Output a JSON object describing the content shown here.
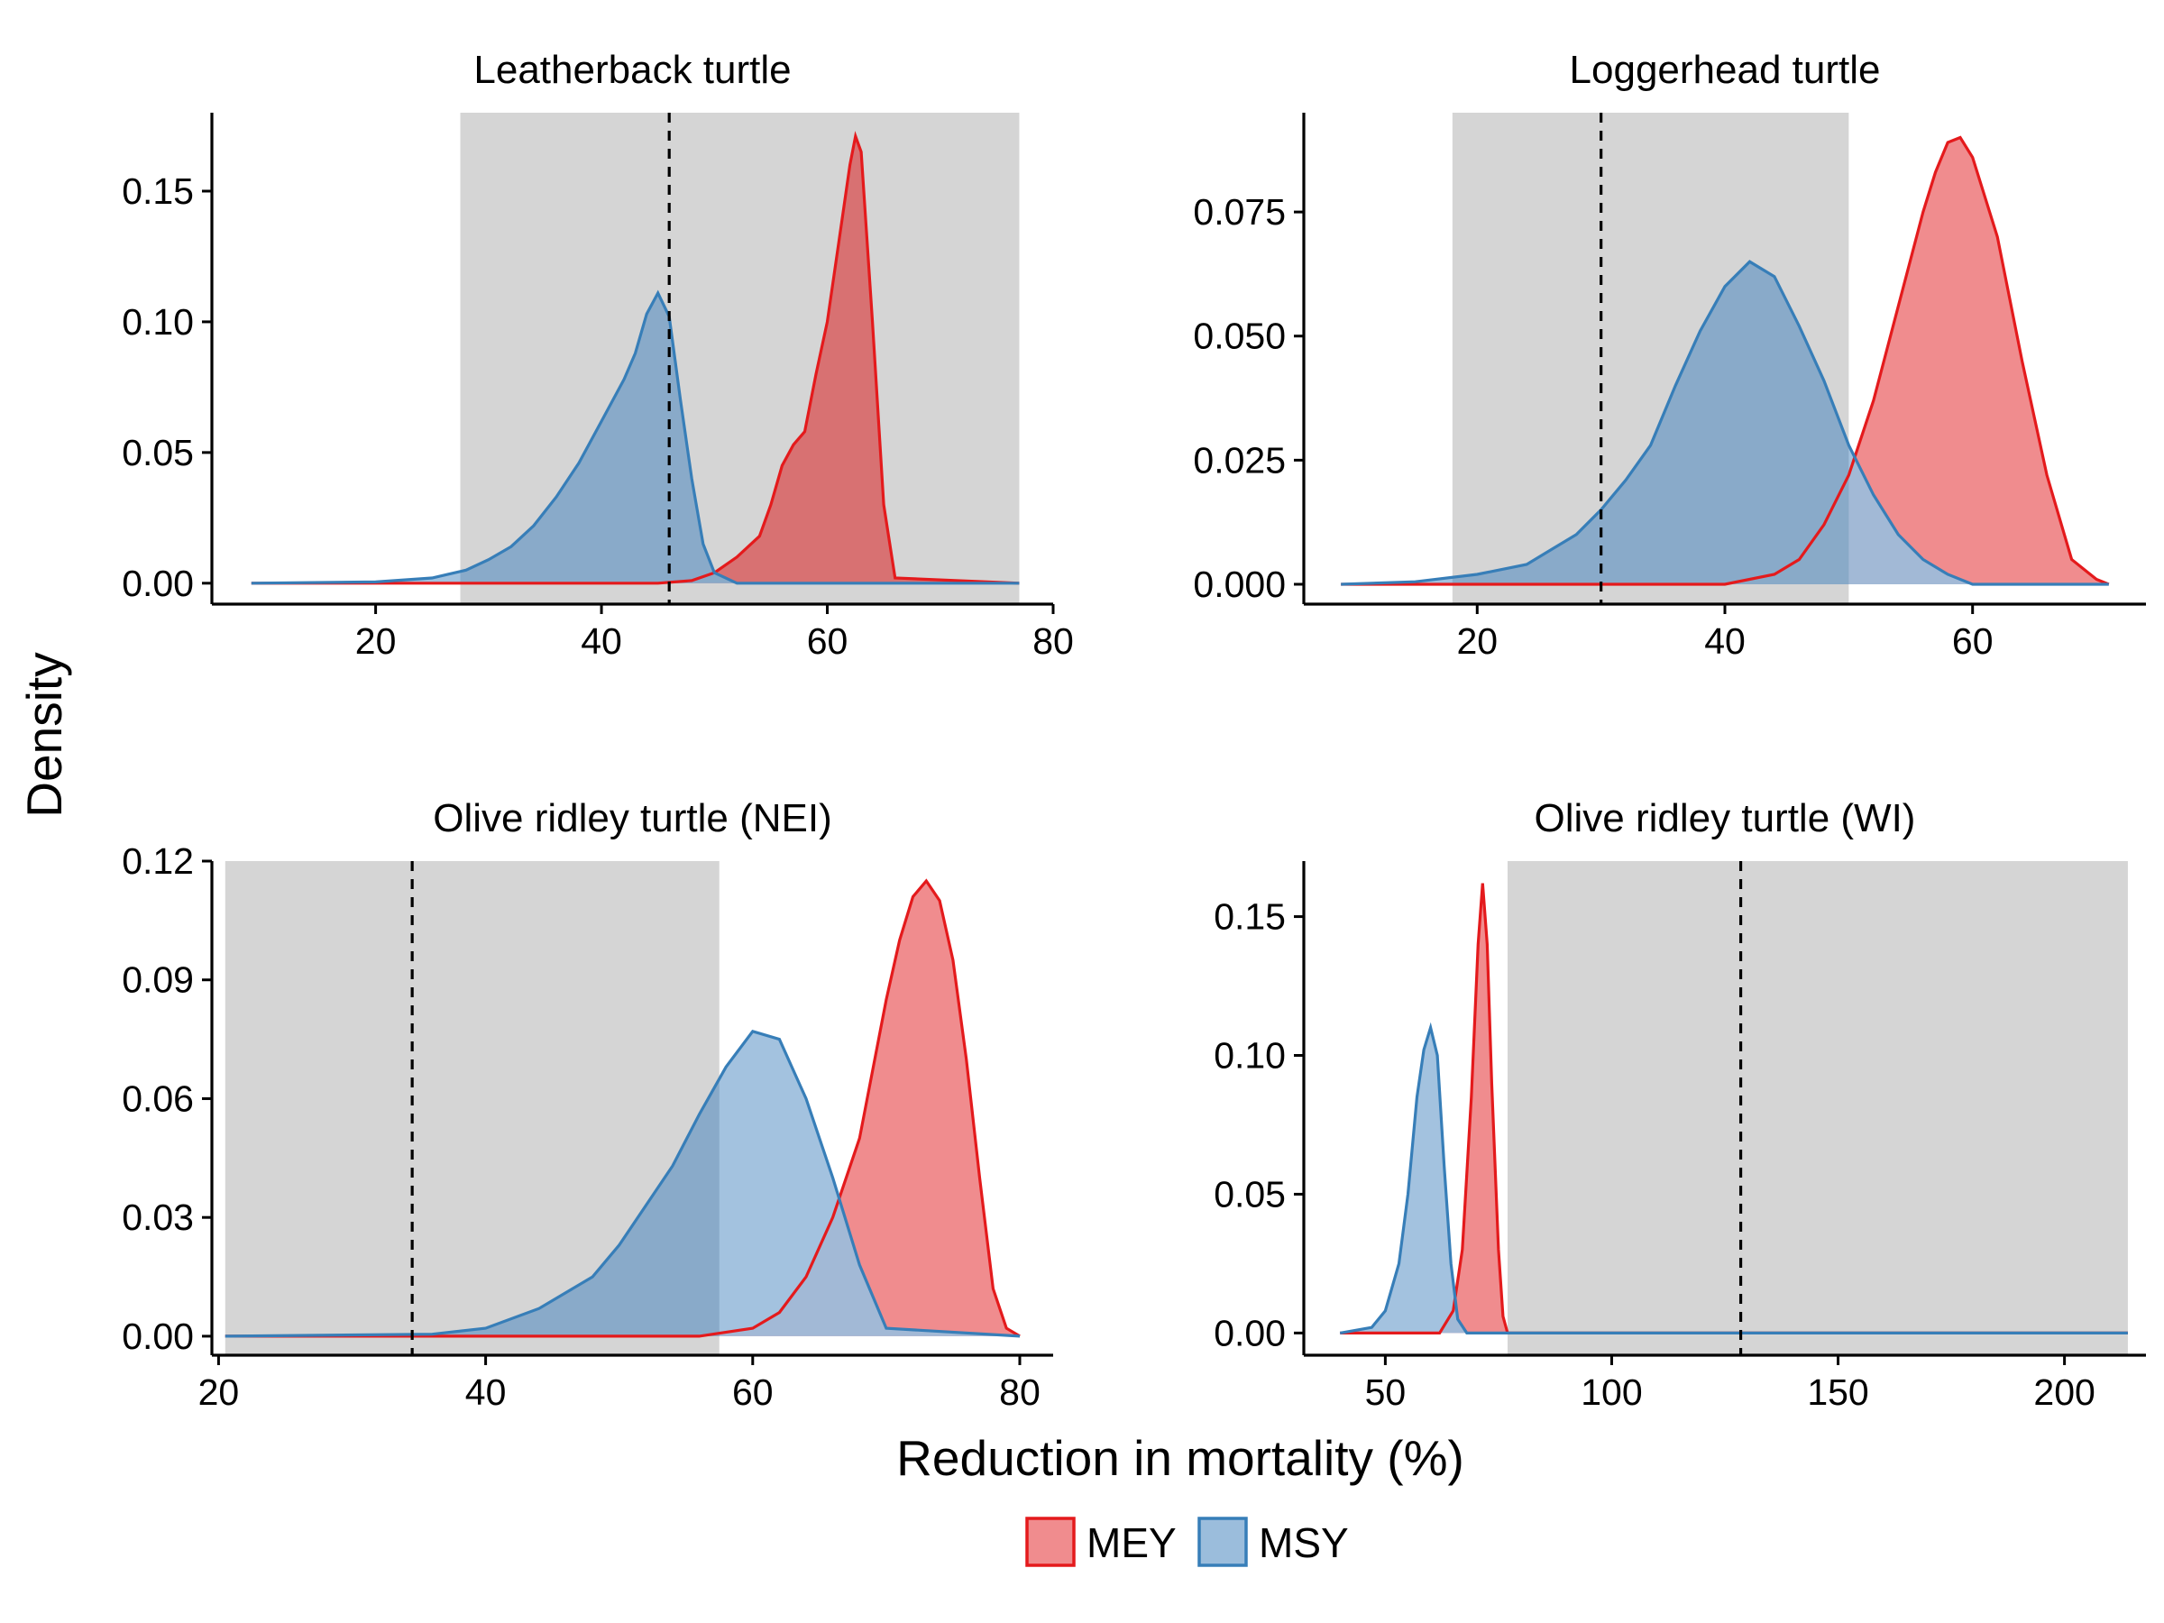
{
  "figure": {
    "ylabel": "Density",
    "xlabel": "Reduction in mortality (%)"
  },
  "legend": {
    "position": "bottom",
    "items": [
      {
        "label": "MEY",
        "fill": "#f08c8e",
        "stroke": "#e41a1c"
      },
      {
        "label": "MSY",
        "fill": "#9bbddc",
        "stroke": "#377eb8"
      }
    ]
  },
  "colors": {
    "MEY_fill": "#f08c8e",
    "MEY_line": "#e41a1c",
    "MSY_fill": "#9bbddc",
    "MSY_line": "#377eb8",
    "band": "#d5d5d5",
    "band_overlap_blue": "#87a8c7",
    "band_overlap_red": "#d87172"
  },
  "chart_data": [
    {
      "type": "area",
      "title": "Leatherback turtle",
      "xlim": [
        5.5,
        80
      ],
      "ylim": [
        -0.008,
        0.18
      ],
      "xticks": [
        20,
        40,
        60,
        80
      ],
      "yticks": [
        0.0,
        0.05,
        0.1,
        0.15
      ],
      "ytick_labels": [
        "0.00",
        "0.05",
        "0.10",
        "0.15"
      ],
      "band": [
        27.5,
        77
      ],
      "vline": 46,
      "series": [
        {
          "name": "MSY",
          "x": [
            9,
            20,
            25,
            28,
            30,
            32,
            34,
            36,
            38,
            40,
            42,
            43,
            44,
            45,
            46,
            47,
            48,
            49,
            50,
            52,
            77
          ],
          "y": [
            0,
            0.0005,
            0.002,
            0.005,
            0.009,
            0.014,
            0.022,
            0.033,
            0.046,
            0.062,
            0.078,
            0.088,
            0.103,
            0.111,
            0.102,
            0.07,
            0.04,
            0.015,
            0.004,
            0,
            0
          ]
        },
        {
          "name": "MEY",
          "x": [
            9,
            45,
            48,
            50,
            52,
            54,
            55,
            56,
            57,
            58,
            59,
            60,
            61,
            62,
            62.5,
            63,
            64,
            65,
            66,
            77
          ],
          "y": [
            0,
            0,
            0.001,
            0.004,
            0.01,
            0.018,
            0.03,
            0.045,
            0.053,
            0.058,
            0.08,
            0.1,
            0.13,
            0.16,
            0.171,
            0.165,
            0.1,
            0.03,
            0.002,
            0
          ]
        }
      ]
    },
    {
      "type": "area",
      "title": "Loggerhead turtle",
      "xlim": [
        6,
        74
      ],
      "ylim": [
        -0.004,
        0.095
      ],
      "xticks": [
        20,
        40,
        60
      ],
      "yticks": [
        0.0,
        0.025,
        0.05,
        0.075
      ],
      "ytick_labels": [
        "0.000",
        "0.025",
        "0.050",
        "0.075"
      ],
      "band": [
        18,
        50
      ],
      "vline": 30,
      "series": [
        {
          "name": "MSY",
          "x": [
            9,
            15,
            20,
            24,
            26,
            28,
            30,
            32,
            34,
            36,
            38,
            40,
            42,
            44,
            46,
            48,
            50,
            52,
            54,
            56,
            58,
            60,
            71
          ],
          "y": [
            0,
            0.0005,
            0.002,
            0.004,
            0.007,
            0.01,
            0.015,
            0.021,
            0.028,
            0.04,
            0.051,
            0.06,
            0.065,
            0.062,
            0.052,
            0.041,
            0.028,
            0.018,
            0.01,
            0.005,
            0.002,
            0,
            0
          ]
        },
        {
          "name": "MEY",
          "x": [
            9,
            40,
            44,
            46,
            48,
            50,
            52,
            54,
            56,
            57,
            58,
            59,
            60,
            62,
            64,
            66,
            68,
            70,
            71
          ],
          "y": [
            0,
            0,
            0.002,
            0.005,
            0.012,
            0.022,
            0.037,
            0.056,
            0.075,
            0.083,
            0.089,
            0.09,
            0.086,
            0.07,
            0.045,
            0.022,
            0.005,
            0.001,
            0
          ]
        }
      ]
    },
    {
      "type": "area",
      "title": "Olive ridley turtle (NEI)",
      "xlim": [
        19.5,
        82.5
      ],
      "ylim": [
        -0.0048,
        0.12
      ],
      "xticks": [
        20,
        40,
        60,
        80
      ],
      "yticks": [
        0.0,
        0.03,
        0.06,
        0.09,
        0.12
      ],
      "ytick_labels": [
        "0.00",
        "0.03",
        "0.06",
        "0.09",
        "0.12"
      ],
      "band": [
        20.5,
        57.5
      ],
      "vline": 34.5,
      "series": [
        {
          "name": "MSY",
          "x": [
            20.5,
            36,
            40,
            44,
            48,
            50,
            52,
            54,
            56,
            58,
            60,
            62,
            64,
            66,
            68,
            70,
            80
          ],
          "y": [
            0,
            0.0005,
            0.002,
            0.007,
            0.015,
            0.023,
            0.033,
            0.043,
            0.056,
            0.068,
            0.077,
            0.075,
            0.06,
            0.04,
            0.018,
            0.002,
            0
          ]
        },
        {
          "name": "MEY",
          "x": [
            20.5,
            56,
            60,
            62,
            64,
            66,
            68,
            70,
            71,
            72,
            73,
            74,
            75,
            76,
            77,
            78,
            79,
            80
          ],
          "y": [
            0,
            0,
            0.002,
            0.006,
            0.015,
            0.03,
            0.05,
            0.085,
            0.1,
            0.111,
            0.115,
            0.11,
            0.095,
            0.07,
            0.04,
            0.012,
            0.002,
            0
          ]
        }
      ]
    },
    {
      "type": "area",
      "title": "Olive ridley turtle (WI)",
      "xlim": [
        32,
        218
      ],
      "ylim": [
        -0.008,
        0.17
      ],
      "xticks": [
        50,
        100,
        150,
        200
      ],
      "yticks": [
        0.0,
        0.05,
        0.1,
        0.15
      ],
      "ytick_labels": [
        "0.00",
        "0.05",
        "0.10",
        "0.15"
      ],
      "band": [
        77,
        214
      ],
      "vline": 128.5,
      "series": [
        {
          "name": "MSY",
          "x": [
            40,
            47,
            50,
            53,
            55,
            57,
            58.5,
            60,
            61.5,
            63,
            64.5,
            66,
            68,
            214
          ],
          "y": [
            0,
            0.002,
            0.008,
            0.025,
            0.05,
            0.085,
            0.102,
            0.11,
            0.1,
            0.06,
            0.025,
            0.005,
            0,
            0
          ]
        },
        {
          "name": "MEY",
          "x": [
            40,
            62,
            65,
            67,
            69,
            70.5,
            71.5,
            72.5,
            73.5,
            75,
            76,
            77,
            214
          ],
          "y": [
            0,
            0,
            0.008,
            0.03,
            0.085,
            0.14,
            0.162,
            0.14,
            0.09,
            0.03,
            0.006,
            0,
            0
          ]
        }
      ]
    }
  ]
}
